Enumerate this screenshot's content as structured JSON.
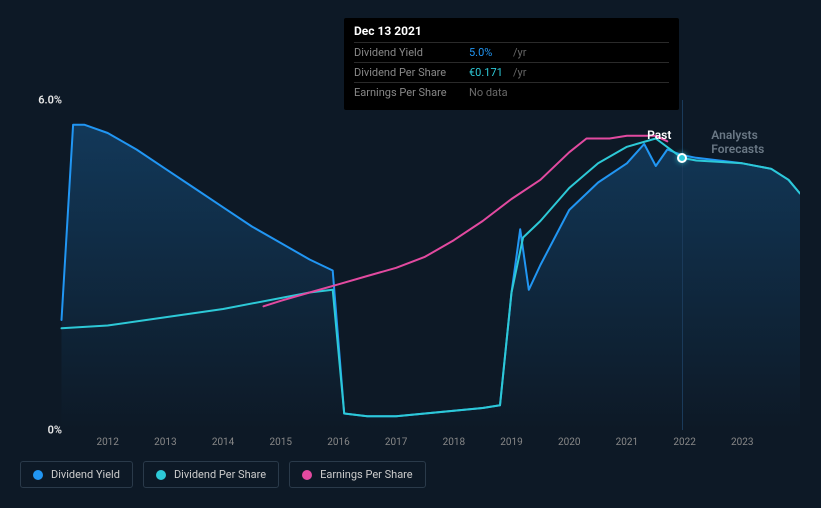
{
  "chart": {
    "type": "line",
    "background_color": "#0d1926",
    "grid_color": "#182838",
    "ylim": [
      0,
      6
    ],
    "yticks": [
      {
        "value": 0,
        "label": "0%"
      },
      {
        "value": 6,
        "label": "6.0%"
      }
    ],
    "xlim": [
      2011,
      2024
    ],
    "xticks": [
      2012,
      2013,
      2014,
      2015,
      2016,
      2017,
      2018,
      2019,
      2020,
      2021,
      2022,
      2023
    ],
    "past_forecast_split": 2021.95,
    "labels": {
      "past": {
        "text": "Past",
        "color": "#ffffff"
      },
      "forecasts": {
        "text": "Analysts Forecasts",
        "color": "#6a7885"
      }
    },
    "highlight": {
      "date": "Dec 13 2021",
      "x": 2021.95,
      "rows": [
        {
          "key": "Dividend Yield",
          "value": "5.0%",
          "unit": "/yr",
          "value_color": "#2196f3"
        },
        {
          "key": "Dividend Per Share",
          "value": "€0.171",
          "unit": "/yr",
          "value_color": "#2dc9d7"
        },
        {
          "key": "Earnings Per Share",
          "value": "No data",
          "unit": "",
          "value_color": "#6a6a6a"
        }
      ],
      "marker_y": 4.95
    },
    "series": [
      {
        "name": "Dividend Yield",
        "color": "#2196f3",
        "width": 2,
        "fill": true,
        "fill_opacity": 0.15,
        "points": [
          [
            2011.2,
            2.0
          ],
          [
            2011.4,
            5.55
          ],
          [
            2011.6,
            5.55
          ],
          [
            2012.0,
            5.4
          ],
          [
            2012.5,
            5.1
          ],
          [
            2013.0,
            4.75
          ],
          [
            2013.5,
            4.4
          ],
          [
            2014.0,
            4.05
          ],
          [
            2014.5,
            3.7
          ],
          [
            2015.0,
            3.4
          ],
          [
            2015.5,
            3.1
          ],
          [
            2015.9,
            2.9
          ],
          [
            2016.1,
            0.3
          ],
          [
            2016.5,
            0.25
          ],
          [
            2017.0,
            0.25
          ],
          [
            2017.5,
            0.3
          ],
          [
            2018.0,
            0.35
          ],
          [
            2018.5,
            0.4
          ],
          [
            2018.8,
            0.45
          ],
          [
            2019.0,
            2.5
          ],
          [
            2019.15,
            3.65
          ],
          [
            2019.3,
            2.55
          ],
          [
            2019.5,
            3.0
          ],
          [
            2020.0,
            4.0
          ],
          [
            2020.5,
            4.5
          ],
          [
            2021.0,
            4.85
          ],
          [
            2021.3,
            5.2
          ],
          [
            2021.5,
            4.8
          ],
          [
            2021.7,
            5.1
          ],
          [
            2021.95,
            5.0
          ],
          [
            2022.2,
            4.95
          ],
          [
            2022.6,
            4.9
          ],
          [
            2023.0,
            4.85
          ],
          [
            2023.5,
            4.75
          ],
          [
            2023.8,
            4.55
          ],
          [
            2024.0,
            4.3
          ]
        ]
      },
      {
        "name": "Dividend Per Share",
        "color": "#2dc9d7",
        "width": 2,
        "fill": false,
        "points": [
          [
            2011.2,
            1.85
          ],
          [
            2012.0,
            1.9
          ],
          [
            2013.0,
            2.05
          ],
          [
            2014.0,
            2.2
          ],
          [
            2015.0,
            2.4
          ],
          [
            2015.5,
            2.5
          ],
          [
            2015.9,
            2.55
          ],
          [
            2016.1,
            0.3
          ],
          [
            2016.5,
            0.25
          ],
          [
            2017.0,
            0.25
          ],
          [
            2017.5,
            0.3
          ],
          [
            2018.0,
            0.35
          ],
          [
            2018.5,
            0.4
          ],
          [
            2018.8,
            0.45
          ],
          [
            2019.0,
            2.5
          ],
          [
            2019.2,
            3.5
          ],
          [
            2019.5,
            3.8
          ],
          [
            2020.0,
            4.4
          ],
          [
            2020.5,
            4.85
          ],
          [
            2021.0,
            5.15
          ],
          [
            2021.5,
            5.3
          ],
          [
            2021.95,
            4.95
          ],
          [
            2022.2,
            4.9
          ],
          [
            2023.0,
            4.85
          ],
          [
            2023.5,
            4.75
          ],
          [
            2023.8,
            4.55
          ],
          [
            2024.0,
            4.3
          ]
        ]
      },
      {
        "name": "Earnings Per Share",
        "color": "#e24aa0",
        "width": 2,
        "fill": false,
        "points": [
          [
            2014.7,
            2.25
          ],
          [
            2015.0,
            2.35
          ],
          [
            2015.5,
            2.5
          ],
          [
            2016.0,
            2.65
          ],
          [
            2016.5,
            2.8
          ],
          [
            2017.0,
            2.95
          ],
          [
            2017.5,
            3.15
          ],
          [
            2018.0,
            3.45
          ],
          [
            2018.5,
            3.8
          ],
          [
            2019.0,
            4.2
          ],
          [
            2019.5,
            4.55
          ],
          [
            2020.0,
            5.05
          ],
          [
            2020.3,
            5.3
          ],
          [
            2020.7,
            5.3
          ],
          [
            2021.0,
            5.35
          ],
          [
            2021.5,
            5.35
          ],
          [
            2021.7,
            5.25
          ]
        ]
      }
    ]
  },
  "legend": {
    "items": [
      {
        "label": "Dividend Yield",
        "color": "#2196f3"
      },
      {
        "label": "Dividend Per Share",
        "color": "#2dc9d7"
      },
      {
        "label": "Earnings Per Share",
        "color": "#e24aa0"
      }
    ]
  }
}
